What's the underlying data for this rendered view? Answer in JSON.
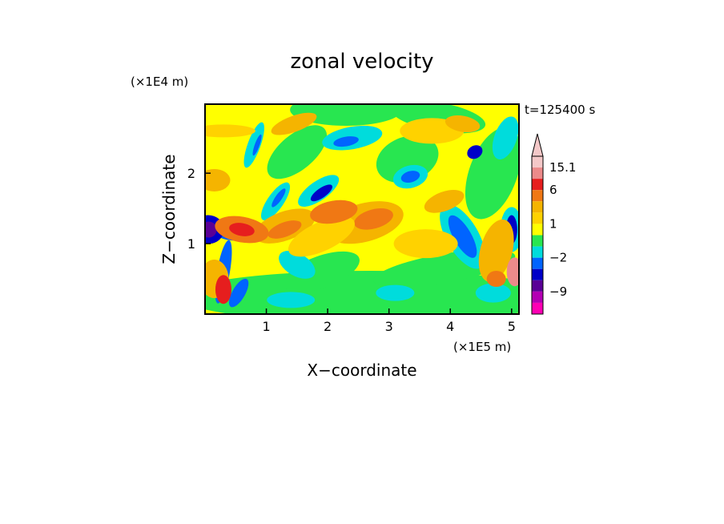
{
  "chart_data": {
    "type": "heatmap",
    "title": "zonal velocity",
    "xlabel": "X−coordinate",
    "ylabel": "Z−coordinate",
    "x_unit": "(×1E5 m)",
    "y_unit": "(×1E4 m)",
    "time_label": "t=125400 s",
    "xlim": [
      0,
      5.12
    ],
    "ylim": [
      0,
      2.98
    ],
    "x_ticks": [
      1,
      2,
      3,
      4,
      5
    ],
    "y_ticks": [
      1,
      2
    ],
    "colorbar": {
      "tick_labels": [
        "15.1",
        "6",
        "1",
        "−2",
        "−9"
      ],
      "extend": "max",
      "levels_top_to_bottom": [
        {
          "color": "#f4c8c8",
          "range": [
            15.1,
            null
          ]
        },
        {
          "color": "#ec8a8a",
          "range": [
            9,
            15.1
          ]
        },
        {
          "color": "#e61e1e",
          "range": [
            6,
            9
          ]
        },
        {
          "color": "#f07814",
          "range": [
            3,
            6
          ]
        },
        {
          "color": "#f5b400",
          "range": [
            1.5,
            3
          ]
        },
        {
          "color": "#ffd200",
          "range": [
            1,
            1.5
          ]
        },
        {
          "color": "#ffff00",
          "range": [
            0,
            1
          ]
        },
        {
          "color": "#28e650",
          "range": [
            -1,
            0
          ]
        },
        {
          "color": "#00dcdc",
          "range": [
            -2,
            -1
          ]
        },
        {
          "color": "#0064ff",
          "range": [
            -4,
            -2
          ]
        },
        {
          "color": "#0000c8",
          "range": [
            -7,
            -4
          ]
        },
        {
          "color": "#5a0096",
          "range": [
            -9,
            -7
          ]
        },
        {
          "color": "#b400b4",
          "range": [
            -12,
            -9
          ]
        },
        {
          "color": "#ff00b4",
          "range": [
            null,
            -12
          ]
        }
      ]
    }
  }
}
